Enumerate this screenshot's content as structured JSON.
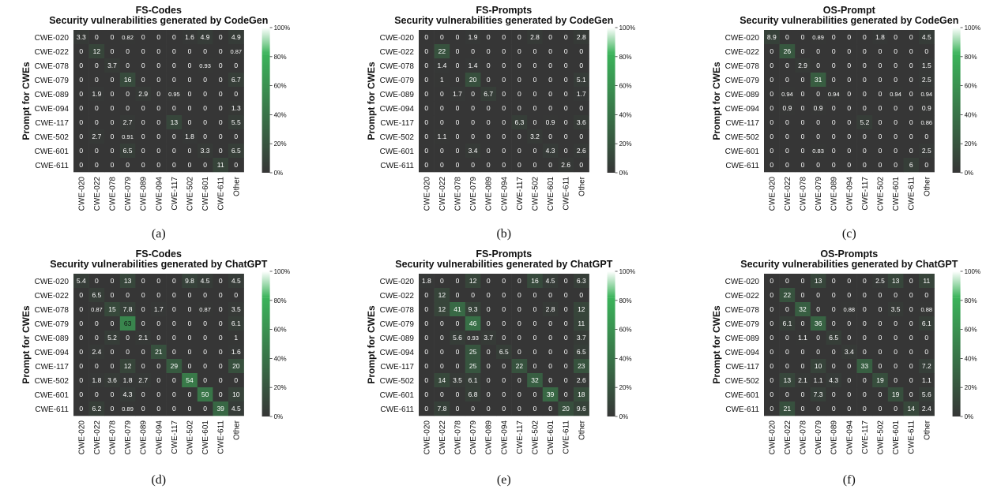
{
  "figure": {
    "colors": {
      "low": "#363636",
      "high": "#3bb35a",
      "cell_text_dark": "#ffffff",
      "cell_text_light": "#111111"
    },
    "colorbar_ticks": [
      "0%",
      "20%",
      "40%",
      "60%",
      "80%",
      "100%"
    ]
  },
  "chart_data": [
    {
      "type": "heatmap",
      "panel_label": "(a)",
      "title": "FS-Codes",
      "subtitle": "Security vulnerabilities generated by CodeGen",
      "ylabel": "Prompt for CWEs",
      "rows": [
        "CWE-020",
        "CWE-022",
        "CWE-078",
        "CWE-079",
        "CWE-089",
        "CWE-094",
        "CWE-117",
        "CWE-502",
        "CWE-601",
        "CWE-611"
      ],
      "cols": [
        "CWE-020",
        "CWE-022",
        "CWE-078",
        "CWE-079",
        "CWE-089",
        "CWE-094",
        "CWE-117",
        "CWE-502",
        "CWE-601",
        "CWE-611",
        "Other"
      ],
      "value_range": [
        0,
        100
      ],
      "values": [
        [
          "3.3",
          "0",
          "0",
          "0.82",
          "0",
          "0",
          "0",
          "1.6",
          "4.9",
          "0",
          "4.9"
        ],
        [
          "0",
          "12",
          "0",
          "0",
          "0",
          "0",
          "0",
          "0",
          "0",
          "0",
          "0.87"
        ],
        [
          "0",
          "0",
          "3.7",
          "0",
          "0",
          "0",
          "0",
          "0",
          "0.93",
          "0",
          "0"
        ],
        [
          "0",
          "0",
          "0",
          "16",
          "0",
          "0",
          "0",
          "0",
          "0",
          "0",
          "6.7"
        ],
        [
          "0",
          "1.9",
          "0",
          "0",
          "2.9",
          "0",
          "0.95",
          "0",
          "0",
          "0",
          "0"
        ],
        [
          "0",
          "0",
          "0",
          "0",
          "0",
          "0",
          "0",
          "0",
          "0",
          "0",
          "1.3"
        ],
        [
          "0",
          "0",
          "0",
          "2.7",
          "0",
          "0",
          "13",
          "0",
          "0",
          "0",
          "5.5"
        ],
        [
          "0",
          "2.7",
          "0",
          "0.91",
          "0",
          "0",
          "0",
          "1.8",
          "0",
          "0",
          "0"
        ],
        [
          "0",
          "0",
          "0",
          "6.5",
          "0",
          "0",
          "0",
          "0",
          "3.3",
          "0",
          "6.5"
        ],
        [
          "0",
          "0",
          "0",
          "0",
          "0",
          "0",
          "0",
          "0",
          "0",
          "11",
          "0"
        ]
      ]
    },
    {
      "type": "heatmap",
      "panel_label": "(b)",
      "title": "FS-Prompts",
      "subtitle": "Security vulnerabilities generated by CodeGen",
      "ylabel": "Prompt for CWEs",
      "rows": [
        "CWE-020",
        "CWE-022",
        "CWE-078",
        "CWE-079",
        "CWE-089",
        "CWE-094",
        "CWE-117",
        "CWE-502",
        "CWE-601",
        "CWE-611"
      ],
      "cols": [
        "CWE-020",
        "CWE-022",
        "CWE-078",
        "CWE-079",
        "CWE-089",
        "CWE-094",
        "CWE-117",
        "CWE-502",
        "CWE-601",
        "CWE-611",
        "Other"
      ],
      "value_range": [
        0,
        100
      ],
      "values": [
        [
          "0",
          "0",
          "0",
          "1.9",
          "0",
          "0",
          "0",
          "2.8",
          "0",
          "0",
          "2.8"
        ],
        [
          "0",
          "22",
          "0",
          "0",
          "0",
          "0",
          "0",
          "0",
          "0",
          "0",
          "0"
        ],
        [
          "0",
          "1.4",
          "0",
          "1.4",
          "0",
          "0",
          "0",
          "0",
          "0",
          "0",
          "0"
        ],
        [
          "0",
          "1",
          "0",
          "20",
          "0",
          "0",
          "0",
          "0",
          "0",
          "0",
          "5.1"
        ],
        [
          "0",
          "0",
          "1.7",
          "0",
          "6.7",
          "0",
          "0",
          "0",
          "0",
          "0",
          "1.7"
        ],
        [
          "0",
          "0",
          "0",
          "0",
          "0",
          "0",
          "0",
          "0",
          "0",
          "0",
          "0"
        ],
        [
          "0",
          "0",
          "0",
          "0",
          "0",
          "0",
          "6.3",
          "0",
          "0.9",
          "0",
          "3.6"
        ],
        [
          "0",
          "1.1",
          "0",
          "0",
          "0",
          "0",
          "0",
          "3.2",
          "0",
          "0",
          "0"
        ],
        [
          "0",
          "0",
          "0",
          "3.4",
          "0",
          "0",
          "0",
          "0",
          "4.3",
          "0",
          "2.6"
        ],
        [
          "0",
          "0",
          "0",
          "0",
          "0",
          "0",
          "0",
          "0",
          "0",
          "2.6",
          "0"
        ]
      ]
    },
    {
      "type": "heatmap",
      "panel_label": "(c)",
      "title": "OS-Prompt",
      "subtitle": "Security vulnerabilities generated by CodeGen",
      "ylabel": "Prompt for CWEs",
      "rows": [
        "CWE-020",
        "CWE-022",
        "CWE-078",
        "CWE-079",
        "CWE-089",
        "CWE-094",
        "CWE-117",
        "CWE-502",
        "CWE-601",
        "CWE-611"
      ],
      "cols": [
        "CWE-020",
        "CWE-022",
        "CWE-078",
        "CWE-079",
        "CWE-089",
        "CWE-094",
        "CWE-117",
        "CWE-502",
        "CWE-601",
        "CWE-611",
        "Other"
      ],
      "value_range": [
        0,
        100
      ],
      "values": [
        [
          "8.9",
          "0",
          "0",
          "0.89",
          "0",
          "0",
          "0",
          "1.8",
          "0",
          "0",
          "4.5"
        ],
        [
          "0",
          "26",
          "0",
          "0",
          "0",
          "0",
          "0",
          "0",
          "0",
          "0",
          "0"
        ],
        [
          "0",
          "0",
          "2.9",
          "0",
          "0",
          "0",
          "0",
          "0",
          "0",
          "0",
          "1.5"
        ],
        [
          "0",
          "0",
          "0",
          "31",
          "0",
          "0",
          "0",
          "0",
          "0",
          "0",
          "2.5"
        ],
        [
          "0",
          "0.94",
          "0",
          "0",
          "0.94",
          "0",
          "0",
          "0",
          "0.94",
          "0",
          "0.94"
        ],
        [
          "0",
          "0.9",
          "0",
          "0.9",
          "0",
          "0",
          "0",
          "0",
          "0",
          "0",
          "0.9"
        ],
        [
          "0",
          "0",
          "0",
          "0",
          "0",
          "0",
          "5.2",
          "0",
          "0",
          "0",
          "0.86"
        ],
        [
          "0",
          "0",
          "0",
          "0",
          "0",
          "0",
          "0",
          "0",
          "0",
          "0",
          "0"
        ],
        [
          "0",
          "0",
          "0",
          "0.83",
          "0",
          "0",
          "0",
          "0",
          "0",
          "0",
          "2.5"
        ],
        [
          "0",
          "0",
          "0",
          "0",
          "0",
          "0",
          "0",
          "0",
          "0",
          "6",
          "0"
        ]
      ]
    },
    {
      "type": "heatmap",
      "panel_label": "(d)",
      "title": "FS-Codes",
      "subtitle": "Security vulnerabilities generated by ChatGPT",
      "ylabel": "Prompt for CWEs",
      "rows": [
        "CWE-020",
        "CWE-022",
        "CWE-078",
        "CWE-079",
        "CWE-089",
        "CWE-094",
        "CWE-117",
        "CWE-502",
        "CWE-601",
        "CWE-611"
      ],
      "cols": [
        "CWE-020",
        "CWE-022",
        "CWE-078",
        "CWE-079",
        "CWE-089",
        "CWE-094",
        "CWE-117",
        "CWE-502",
        "CWE-601",
        "CWE-611",
        "Other"
      ],
      "value_range": [
        0,
        100
      ],
      "values": [
        [
          "5.4",
          "0",
          "0",
          "13",
          "0",
          "0",
          "0",
          "9.8",
          "4.5",
          "0",
          "4.5"
        ],
        [
          "0",
          "6.5",
          "0",
          "0",
          "0",
          "0",
          "0",
          "0",
          "0",
          "0",
          "0"
        ],
        [
          "0",
          "0.87",
          "15",
          "7.8",
          "0",
          "1.7",
          "0",
          "0",
          "0.87",
          "0",
          "3.5"
        ],
        [
          "0",
          "0",
          "0",
          "63",
          "0",
          "0",
          "0",
          "0",
          "0",
          "0",
          "6.1"
        ],
        [
          "0",
          "0",
          "5.2",
          "0",
          "2.1",
          "0",
          "0",
          "0",
          "0",
          "0",
          "1"
        ],
        [
          "0",
          "2.4",
          "0",
          "0",
          "0",
          "21",
          "0",
          "0",
          "0",
          "0",
          "1.6"
        ],
        [
          "0",
          "0",
          "0",
          "12",
          "0",
          "0",
          "29",
          "0",
          "0",
          "0",
          "20"
        ],
        [
          "0",
          "1.8",
          "3.6",
          "1.8",
          "2.7",
          "0",
          "0",
          "54",
          "0",
          "0",
          "0"
        ],
        [
          "0",
          "0",
          "0",
          "4.3",
          "0",
          "0",
          "0",
          "0",
          "50",
          "0",
          "10"
        ],
        [
          "0",
          "6.2",
          "0",
          "0.89",
          "0",
          "0",
          "0",
          "0",
          "0",
          "39",
          "4.5"
        ]
      ]
    },
    {
      "type": "heatmap",
      "panel_label": "(e)",
      "title": "FS-Prompts",
      "subtitle": "Security vulnerabilities generated by ChatGPT",
      "ylabel": "Prompt for CWEs",
      "rows": [
        "CWE-020",
        "CWE-022",
        "CWE-078",
        "CWE-079",
        "CWE-089",
        "CWE-094",
        "CWE-117",
        "CWE-502",
        "CWE-601",
        "CWE-611"
      ],
      "cols": [
        "CWE-020",
        "CWE-022",
        "CWE-078",
        "CWE-079",
        "CWE-089",
        "CWE-094",
        "CWE-117",
        "CWE-502",
        "CWE-601",
        "CWE-611",
        "Other"
      ],
      "value_range": [
        0,
        100
      ],
      "values": [
        [
          "1.8",
          "0",
          "0",
          "12",
          "0",
          "0",
          "0",
          "16",
          "4.5",
          "0",
          "6.3"
        ],
        [
          "0",
          "12",
          "0",
          "0",
          "0",
          "0",
          "0",
          "0",
          "0",
          "0",
          "0"
        ],
        [
          "0",
          "12",
          "41",
          "9.3",
          "0",
          "0",
          "0",
          "0",
          "2.8",
          "0",
          "12"
        ],
        [
          "0",
          "0",
          "0",
          "46",
          "0",
          "0",
          "0",
          "0",
          "0",
          "0",
          "11"
        ],
        [
          "0",
          "0",
          "5.6",
          "0.93",
          "3.7",
          "0",
          "0",
          "0",
          "0",
          "0",
          "3.7"
        ],
        [
          "0",
          "0",
          "0",
          "25",
          "0",
          "6.5",
          "0",
          "0",
          "0",
          "0",
          "6.5"
        ],
        [
          "0",
          "0",
          "0",
          "25",
          "0",
          "0",
          "22",
          "0",
          "0",
          "0",
          "23"
        ],
        [
          "0",
          "14",
          "3.5",
          "6.1",
          "0",
          "0",
          "0",
          "32",
          "0",
          "0",
          "2.6"
        ],
        [
          "0",
          "0",
          "0",
          "6.8",
          "0",
          "0",
          "0",
          "0",
          "39",
          "0",
          "18"
        ],
        [
          "0",
          "7.8",
          "0",
          "0",
          "0",
          "0",
          "0",
          "0",
          "0",
          "20",
          "9.6"
        ]
      ]
    },
    {
      "type": "heatmap",
      "panel_label": "(f)",
      "title": "OS-Prompts",
      "subtitle": "Security vulnerabilities generated by ChatGPT",
      "ylabel": "Prompt for CWEs",
      "rows": [
        "CWE-020",
        "CWE-022",
        "CWE-078",
        "CWE-079",
        "CWE-089",
        "CWE-094",
        "CWE-117",
        "CWE-502",
        "CWE-601",
        "CWE-611"
      ],
      "cols": [
        "CWE-020",
        "CWE-022",
        "CWE-078",
        "CWE-079",
        "CWE-089",
        "CWE-094",
        "CWE-117",
        "CWE-502",
        "CWE-601",
        "CWE-611",
        "Other"
      ],
      "value_range": [
        0,
        100
      ],
      "values": [
        [
          "0",
          "0",
          "0",
          "13",
          "0",
          "0",
          "0",
          "2.5",
          "13",
          "0",
          "11"
        ],
        [
          "0",
          "22",
          "0",
          "0",
          "0",
          "0",
          "0",
          "0",
          "0",
          "0",
          "0"
        ],
        [
          "0",
          "0",
          "32",
          "0",
          "0",
          "0.88",
          "0",
          "0",
          "3.5",
          "0",
          "0.88"
        ],
        [
          "0",
          "6.1",
          "0",
          "36",
          "0",
          "0",
          "0",
          "0",
          "0",
          "0",
          "6.1"
        ],
        [
          "0",
          "0",
          "1.1",
          "0",
          "6.5",
          "0",
          "0",
          "0",
          "0",
          "0",
          "0"
        ],
        [
          "0",
          "0",
          "0",
          "0",
          "0",
          "3.4",
          "0",
          "0",
          "0",
          "0",
          "0"
        ],
        [
          "0",
          "0",
          "0",
          "10",
          "0",
          "0",
          "33",
          "0",
          "0",
          "0",
          "7.2"
        ],
        [
          "0",
          "13",
          "2.1",
          "1.1",
          "4.3",
          "0",
          "0",
          "19",
          "0",
          "0",
          "1.1"
        ],
        [
          "0",
          "0",
          "0",
          "7.3",
          "0",
          "0",
          "0",
          "0",
          "19",
          "0",
          "5.6"
        ],
        [
          "0",
          "21",
          "0",
          "0",
          "0",
          "0",
          "0",
          "0",
          "0",
          "14",
          "2.4"
        ]
      ]
    }
  ]
}
